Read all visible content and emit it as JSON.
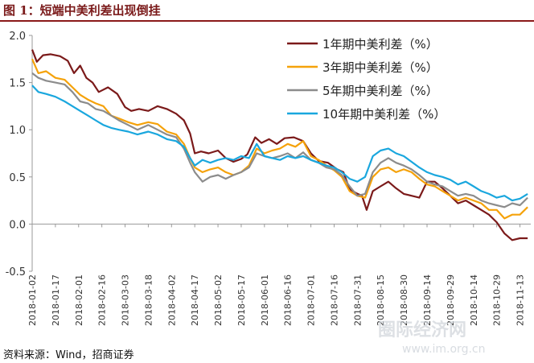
{
  "title": "图 1：短端中美利差出现倒挂",
  "source": "资料来源：Wind，招商证券",
  "watermark": {
    "text": "圈际经济网",
    "url": "www.im.org.cn"
  },
  "colors": {
    "series_1y": "#7b1a1a",
    "series_3y": "#f5a20a",
    "series_5y": "#8c8c8c",
    "series_10y": "#1aa7de",
    "title": "#7a1a1a"
  },
  "chart_data": {
    "type": "line",
    "title": "",
    "xlabel": "",
    "ylabel": "",
    "ylim": [
      -0.5,
      2.0
    ],
    "yticks": [
      -0.5,
      0.0,
      0.5,
      1.0,
      1.5,
      2.0
    ],
    "ytick_labels": [
      "-0.5",
      "0.0",
      "0.5",
      "1.0",
      "1.5",
      "2.0"
    ],
    "xlim": [
      "2018-01-02",
      "2018-11-20"
    ],
    "xtick_labels": [
      "2018-01-02",
      "2018-01-17",
      "2018-02-01",
      "2018-02-16",
      "2018-03-03",
      "2018-03-18",
      "2018-04-02",
      "2018-04-17",
      "2018-05-02",
      "2018-05-17",
      "2018-06-01",
      "2018-06-16",
      "2018-07-01",
      "2018-07-16",
      "2018-07-31",
      "2018-08-15",
      "2018-08-30",
      "2018-09-14",
      "2018-09-29",
      "2018-10-14",
      "2018-10-29",
      "2018-11-13"
    ],
    "grid": false,
    "legend_position": "top-right",
    "series": [
      {
        "name": "1年期中美利差（%）",
        "color": "#7b1a1a",
        "points": [
          [
            "2018-01-02",
            1.85
          ],
          [
            "2018-01-05",
            1.72
          ],
          [
            "2018-01-09",
            1.79
          ],
          [
            "2018-01-14",
            1.8
          ],
          [
            "2018-01-20",
            1.78
          ],
          [
            "2018-01-25",
            1.73
          ],
          [
            "2018-01-29",
            1.6
          ],
          [
            "2018-02-02",
            1.68
          ],
          [
            "2018-02-06",
            1.55
          ],
          [
            "2018-02-10",
            1.5
          ],
          [
            "2018-02-14",
            1.4
          ],
          [
            "2018-02-20",
            1.45
          ],
          [
            "2018-02-26",
            1.38
          ],
          [
            "2018-03-03",
            1.24
          ],
          [
            "2018-03-07",
            1.2
          ],
          [
            "2018-03-12",
            1.22
          ],
          [
            "2018-03-18",
            1.2
          ],
          [
            "2018-03-24",
            1.25
          ],
          [
            "2018-03-30",
            1.22
          ],
          [
            "2018-04-05",
            1.17
          ],
          [
            "2018-04-10",
            1.1
          ],
          [
            "2018-04-14",
            0.96
          ],
          [
            "2018-04-17",
            0.75
          ],
          [
            "2018-04-21",
            0.77
          ],
          [
            "2018-04-26",
            0.75
          ],
          [
            "2018-05-02",
            0.78
          ],
          [
            "2018-05-07",
            0.7
          ],
          [
            "2018-05-12",
            0.66
          ],
          [
            "2018-05-17",
            0.69
          ],
          [
            "2018-05-21",
            0.74
          ],
          [
            "2018-05-26",
            0.92
          ],
          [
            "2018-05-30",
            0.86
          ],
          [
            "2018-06-04",
            0.9
          ],
          [
            "2018-06-09",
            0.85
          ],
          [
            "2018-06-14",
            0.91
          ],
          [
            "2018-06-20",
            0.92
          ],
          [
            "2018-06-26",
            0.88
          ],
          [
            "2018-07-01",
            0.75
          ],
          [
            "2018-07-06",
            0.67
          ],
          [
            "2018-07-12",
            0.65
          ],
          [
            "2018-07-18",
            0.58
          ],
          [
            "2018-07-22",
            0.55
          ],
          [
            "2018-07-26",
            0.37
          ],
          [
            "2018-07-30",
            0.33
          ],
          [
            "2018-08-03",
            0.3
          ],
          [
            "2018-08-06",
            0.15
          ],
          [
            "2018-08-10",
            0.35
          ],
          [
            "2018-08-15",
            0.4
          ],
          [
            "2018-08-20",
            0.45
          ],
          [
            "2018-08-25",
            0.38
          ],
          [
            "2018-08-30",
            0.32
          ],
          [
            "2018-09-04",
            0.3
          ],
          [
            "2018-09-09",
            0.28
          ],
          [
            "2018-09-14",
            0.45
          ],
          [
            "2018-09-19",
            0.45
          ],
          [
            "2018-09-24",
            0.38
          ],
          [
            "2018-09-29",
            0.3
          ],
          [
            "2018-10-04",
            0.22
          ],
          [
            "2018-10-09",
            0.25
          ],
          [
            "2018-10-14",
            0.2
          ],
          [
            "2018-10-19",
            0.15
          ],
          [
            "2018-10-24",
            0.1
          ],
          [
            "2018-10-29",
            0.02
          ],
          [
            "2018-11-03",
            -0.1
          ],
          [
            "2018-11-08",
            -0.17
          ],
          [
            "2018-11-13",
            -0.15
          ],
          [
            "2018-11-18",
            -0.15
          ]
        ]
      },
      {
        "name": "3年期中美利差（%）",
        "color": "#f5a20a",
        "points": [
          [
            "2018-01-02",
            1.75
          ],
          [
            "2018-01-06",
            1.6
          ],
          [
            "2018-01-11",
            1.62
          ],
          [
            "2018-01-17",
            1.55
          ],
          [
            "2018-01-23",
            1.53
          ],
          [
            "2018-01-28",
            1.45
          ],
          [
            "2018-02-02",
            1.37
          ],
          [
            "2018-02-07",
            1.32
          ],
          [
            "2018-02-12",
            1.28
          ],
          [
            "2018-02-17",
            1.25
          ],
          [
            "2018-02-22",
            1.15
          ],
          [
            "2018-02-27",
            1.12
          ],
          [
            "2018-03-05",
            1.08
          ],
          [
            "2018-03-11",
            1.05
          ],
          [
            "2018-03-18",
            1.08
          ],
          [
            "2018-03-24",
            1.06
          ],
          [
            "2018-03-30",
            0.98
          ],
          [
            "2018-04-05",
            0.95
          ],
          [
            "2018-04-10",
            0.85
          ],
          [
            "2018-04-14",
            0.7
          ],
          [
            "2018-04-17",
            0.6
          ],
          [
            "2018-04-22",
            0.55
          ],
          [
            "2018-04-27",
            0.58
          ],
          [
            "2018-05-02",
            0.6
          ],
          [
            "2018-05-07",
            0.55
          ],
          [
            "2018-05-12",
            0.52
          ],
          [
            "2018-05-17",
            0.55
          ],
          [
            "2018-05-22",
            0.62
          ],
          [
            "2018-05-27",
            0.8
          ],
          [
            "2018-06-01",
            0.75
          ],
          [
            "2018-06-06",
            0.78
          ],
          [
            "2018-06-11",
            0.8
          ],
          [
            "2018-06-16",
            0.85
          ],
          [
            "2018-06-21",
            0.82
          ],
          [
            "2018-06-26",
            0.88
          ],
          [
            "2018-07-01",
            0.72
          ],
          [
            "2018-07-06",
            0.68
          ],
          [
            "2018-07-11",
            0.62
          ],
          [
            "2018-07-16",
            0.57
          ],
          [
            "2018-07-21",
            0.5
          ],
          [
            "2018-07-26",
            0.35
          ],
          [
            "2018-07-31",
            0.3
          ],
          [
            "2018-08-05",
            0.28
          ],
          [
            "2018-08-10",
            0.5
          ],
          [
            "2018-08-15",
            0.58
          ],
          [
            "2018-08-20",
            0.6
          ],
          [
            "2018-08-25",
            0.55
          ],
          [
            "2018-08-30",
            0.58
          ],
          [
            "2018-09-04",
            0.55
          ],
          [
            "2018-09-09",
            0.48
          ],
          [
            "2018-09-14",
            0.42
          ],
          [
            "2018-09-19",
            0.4
          ],
          [
            "2018-09-24",
            0.35
          ],
          [
            "2018-09-29",
            0.3
          ],
          [
            "2018-10-04",
            0.25
          ],
          [
            "2018-10-09",
            0.28
          ],
          [
            "2018-10-14",
            0.25
          ],
          [
            "2018-10-19",
            0.22
          ],
          [
            "2018-10-24",
            0.15
          ],
          [
            "2018-10-29",
            0.15
          ],
          [
            "2018-11-03",
            0.06
          ],
          [
            "2018-11-08",
            0.1
          ],
          [
            "2018-11-13",
            0.1
          ],
          [
            "2018-11-18",
            0.18
          ]
        ]
      },
      {
        "name": "5年期中美利差（%）",
        "color": "#8c8c8c",
        "points": [
          [
            "2018-01-02",
            1.6
          ],
          [
            "2018-01-06",
            1.55
          ],
          [
            "2018-01-11",
            1.52
          ],
          [
            "2018-01-17",
            1.5
          ],
          [
            "2018-01-23",
            1.48
          ],
          [
            "2018-01-28",
            1.4
          ],
          [
            "2018-02-02",
            1.3
          ],
          [
            "2018-02-07",
            1.28
          ],
          [
            "2018-02-12",
            1.22
          ],
          [
            "2018-02-17",
            1.2
          ],
          [
            "2018-02-22",
            1.15
          ],
          [
            "2018-02-27",
            1.1
          ],
          [
            "2018-03-05",
            1.05
          ],
          [
            "2018-03-11",
            1.0
          ],
          [
            "2018-03-18",
            1.05
          ],
          [
            "2018-03-24",
            1.0
          ],
          [
            "2018-03-30",
            0.95
          ],
          [
            "2018-04-05",
            0.92
          ],
          [
            "2018-04-10",
            0.8
          ],
          [
            "2018-04-14",
            0.65
          ],
          [
            "2018-04-17",
            0.55
          ],
          [
            "2018-04-22",
            0.45
          ],
          [
            "2018-04-27",
            0.5
          ],
          [
            "2018-05-02",
            0.52
          ],
          [
            "2018-05-07",
            0.48
          ],
          [
            "2018-05-12",
            0.52
          ],
          [
            "2018-05-17",
            0.55
          ],
          [
            "2018-05-22",
            0.6
          ],
          [
            "2018-05-27",
            0.75
          ],
          [
            "2018-06-01",
            0.72
          ],
          [
            "2018-06-06",
            0.7
          ],
          [
            "2018-06-11",
            0.72
          ],
          [
            "2018-06-16",
            0.75
          ],
          [
            "2018-06-21",
            0.7
          ],
          [
            "2018-06-26",
            0.76
          ],
          [
            "2018-07-01",
            0.68
          ],
          [
            "2018-07-06",
            0.65
          ],
          [
            "2018-07-11",
            0.6
          ],
          [
            "2018-07-16",
            0.58
          ],
          [
            "2018-07-21",
            0.52
          ],
          [
            "2018-07-26",
            0.4
          ],
          [
            "2018-07-31",
            0.3
          ],
          [
            "2018-08-05",
            0.32
          ],
          [
            "2018-08-10",
            0.55
          ],
          [
            "2018-08-15",
            0.65
          ],
          [
            "2018-08-20",
            0.7
          ],
          [
            "2018-08-25",
            0.65
          ],
          [
            "2018-08-30",
            0.62
          ],
          [
            "2018-09-04",
            0.58
          ],
          [
            "2018-09-09",
            0.52
          ],
          [
            "2018-09-14",
            0.45
          ],
          [
            "2018-09-19",
            0.42
          ],
          [
            "2018-09-24",
            0.4
          ],
          [
            "2018-09-29",
            0.35
          ],
          [
            "2018-10-04",
            0.3
          ],
          [
            "2018-10-09",
            0.32
          ],
          [
            "2018-10-14",
            0.3
          ],
          [
            "2018-10-19",
            0.25
          ],
          [
            "2018-10-24",
            0.22
          ],
          [
            "2018-10-29",
            0.2
          ],
          [
            "2018-11-03",
            0.18
          ],
          [
            "2018-11-08",
            0.22
          ],
          [
            "2018-11-13",
            0.2
          ],
          [
            "2018-11-18",
            0.28
          ]
        ]
      },
      {
        "name": "10年期中美利差（%）",
        "color": "#1aa7de",
        "points": [
          [
            "2018-01-02",
            1.47
          ],
          [
            "2018-01-06",
            1.4
          ],
          [
            "2018-01-11",
            1.38
          ],
          [
            "2018-01-17",
            1.35
          ],
          [
            "2018-01-23",
            1.3
          ],
          [
            "2018-01-28",
            1.25
          ],
          [
            "2018-02-02",
            1.2
          ],
          [
            "2018-02-07",
            1.15
          ],
          [
            "2018-02-12",
            1.1
          ],
          [
            "2018-02-17",
            1.05
          ],
          [
            "2018-02-22",
            1.02
          ],
          [
            "2018-02-27",
            1.0
          ],
          [
            "2018-03-05",
            0.98
          ],
          [
            "2018-03-11",
            0.95
          ],
          [
            "2018-03-18",
            0.98
          ],
          [
            "2018-03-24",
            0.95
          ],
          [
            "2018-03-30",
            0.9
          ],
          [
            "2018-04-05",
            0.88
          ],
          [
            "2018-04-10",
            0.82
          ],
          [
            "2018-04-14",
            0.7
          ],
          [
            "2018-04-17",
            0.62
          ],
          [
            "2018-04-22",
            0.68
          ],
          [
            "2018-04-27",
            0.65
          ],
          [
            "2018-05-02",
            0.68
          ],
          [
            "2018-05-07",
            0.7
          ],
          [
            "2018-05-12",
            0.68
          ],
          [
            "2018-05-17",
            0.72
          ],
          [
            "2018-05-22",
            0.7
          ],
          [
            "2018-05-27",
            0.85
          ],
          [
            "2018-06-01",
            0.72
          ],
          [
            "2018-06-06",
            0.7
          ],
          [
            "2018-06-11",
            0.68
          ],
          [
            "2018-06-16",
            0.72
          ],
          [
            "2018-06-21",
            0.7
          ],
          [
            "2018-06-26",
            0.72
          ],
          [
            "2018-07-01",
            0.68
          ],
          [
            "2018-07-06",
            0.65
          ],
          [
            "2018-07-11",
            0.62
          ],
          [
            "2018-07-16",
            0.6
          ],
          [
            "2018-07-21",
            0.55
          ],
          [
            "2018-07-26",
            0.48
          ],
          [
            "2018-07-31",
            0.45
          ],
          [
            "2018-08-05",
            0.5
          ],
          [
            "2018-08-10",
            0.72
          ],
          [
            "2018-08-15",
            0.78
          ],
          [
            "2018-08-20",
            0.8
          ],
          [
            "2018-08-25",
            0.75
          ],
          [
            "2018-08-30",
            0.72
          ],
          [
            "2018-09-04",
            0.66
          ],
          [
            "2018-09-09",
            0.6
          ],
          [
            "2018-09-14",
            0.55
          ],
          [
            "2018-09-19",
            0.52
          ],
          [
            "2018-09-24",
            0.5
          ],
          [
            "2018-09-29",
            0.47
          ],
          [
            "2018-10-04",
            0.42
          ],
          [
            "2018-10-09",
            0.45
          ],
          [
            "2018-10-14",
            0.4
          ],
          [
            "2018-10-19",
            0.35
          ],
          [
            "2018-10-24",
            0.32
          ],
          [
            "2018-10-29",
            0.28
          ],
          [
            "2018-11-03",
            0.3
          ],
          [
            "2018-11-08",
            0.25
          ],
          [
            "2018-11-13",
            0.27
          ],
          [
            "2018-11-18",
            0.32
          ]
        ]
      }
    ]
  }
}
